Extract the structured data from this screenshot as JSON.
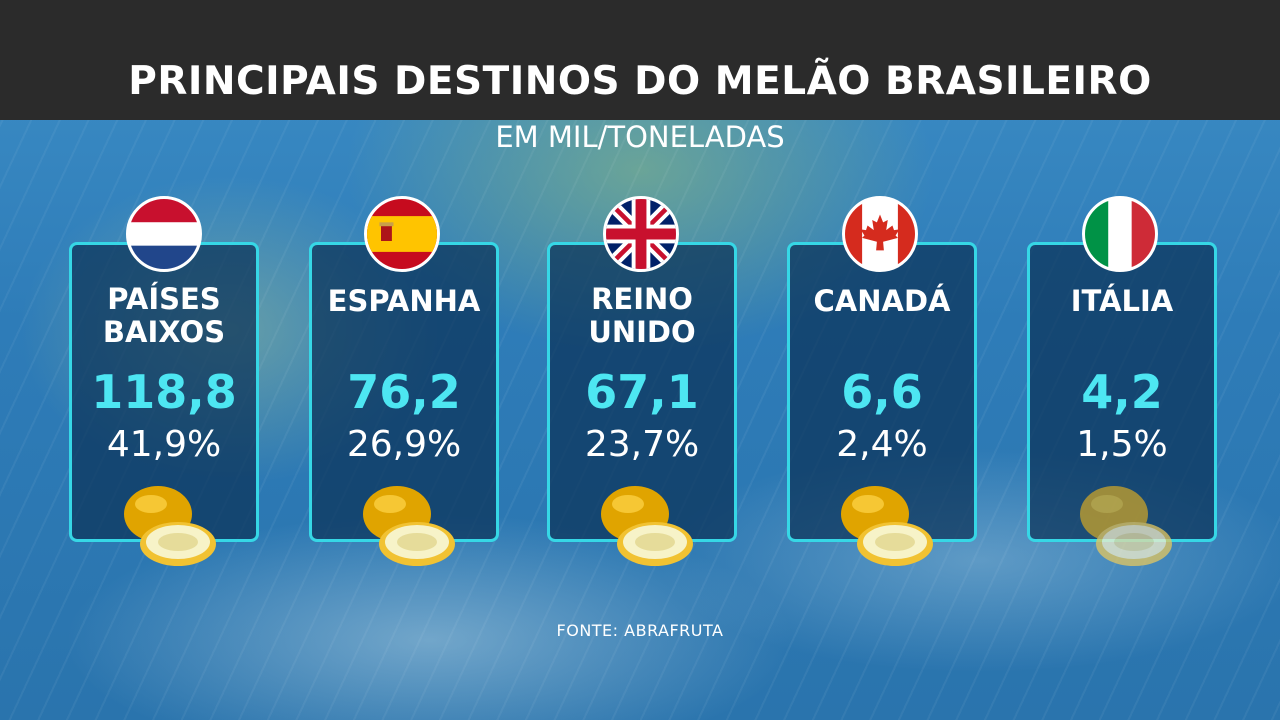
{
  "title": "PRINCIPAIS DESTINOS DO MELÃO BRASILEIRO",
  "subtitle": "EM MIL/TONELADAS",
  "source": "FONTE: ABRAFRUTA",
  "colors": {
    "accent": "#4de6f2",
    "card_border": "#36d7e6",
    "title_bar": "#2b2b2b"
  },
  "countries": [
    {
      "name_line1": "PAÍSES",
      "name_line2": "BAIXOS",
      "value": "118,8",
      "percent": "41,9%",
      "flag_icon": "netherlands-flag-icon"
    },
    {
      "name_line1": "ESPANHA",
      "name_line2": "",
      "value": "76,2",
      "percent": "26,9%",
      "flag_icon": "spain-flag-icon"
    },
    {
      "name_line1": "REINO",
      "name_line2": "UNIDO",
      "value": "67,1",
      "percent": "23,7%",
      "flag_icon": "united-kingdom-flag-icon"
    },
    {
      "name_line1": "CANADÁ",
      "name_line2": "",
      "value": "6,6",
      "percent": "2,4%",
      "flag_icon": "canada-flag-icon"
    },
    {
      "name_line1": "ITÁLIA",
      "name_line2": "",
      "value": "4,2",
      "percent": "1,5%",
      "flag_icon": "italy-flag-icon"
    }
  ]
}
